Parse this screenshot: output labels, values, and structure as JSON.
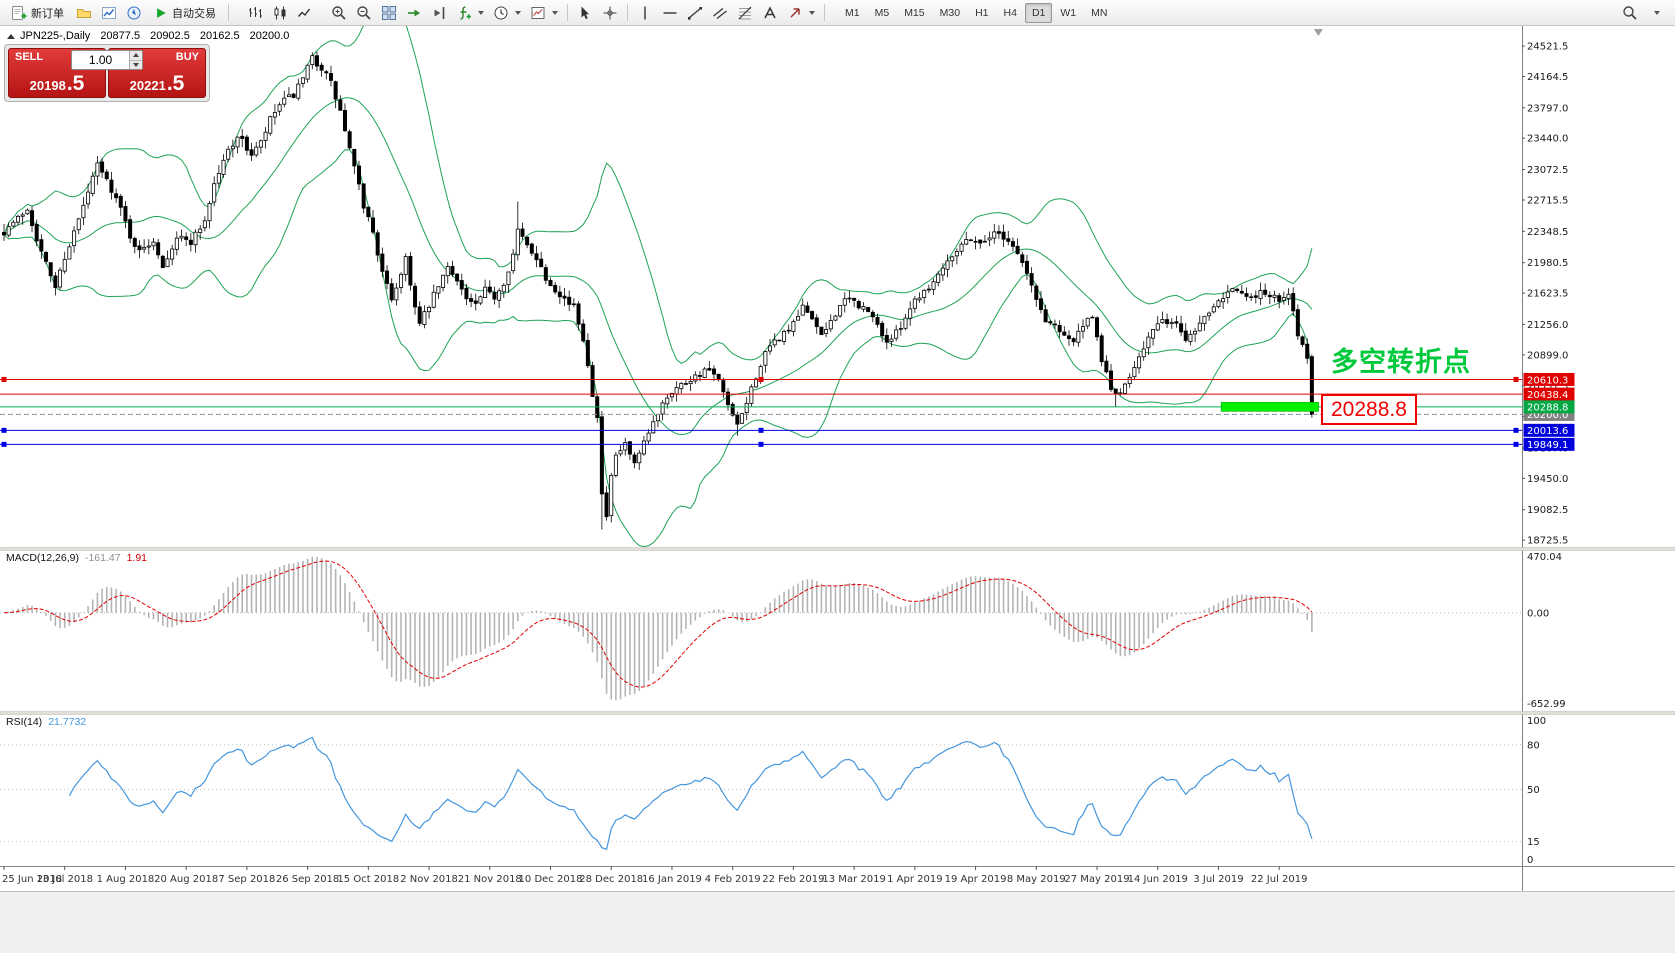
{
  "toolbar": {
    "new_order_label": "新订单",
    "autotrading_label": "自动交易",
    "timeframes": [
      "M1",
      "M5",
      "M15",
      "M30",
      "H1",
      "H4",
      "D1",
      "W1",
      "MN"
    ],
    "active_timeframe": "D1"
  },
  "chart": {
    "symbol_period": "JPN225-,Daily",
    "open": "20877.5",
    "high": "20902.5",
    "low": "20162.5",
    "close": "20200.0"
  },
  "trade_panel": {
    "sell_label": "SELL",
    "buy_label": "BUY",
    "volume": "1.00",
    "sell_price_main": "20198",
    "sell_price_big": ".5",
    "buy_price_main": "20221",
    "buy_price_big": ".5"
  },
  "annotations": {
    "turning_point_text": "多空转折点",
    "price_label": "20288.8"
  },
  "indicators": {
    "macd": {
      "name": "MACD(12,26,9)",
      "value": "-161.47",
      "signal_value": "1.91"
    },
    "rsi": {
      "name": "RSI(14)",
      "value": "21.7732"
    }
  },
  "chart_data": {
    "type": "candlestick",
    "symbol": "JPN225-",
    "timeframe": "Daily",
    "current_bar": {
      "open": 20877.5,
      "high": 20902.5,
      "low": 20162.5,
      "close": 20200.0
    },
    "bid_price": 20198.5,
    "ask_price": 20221.5,
    "ylim": [
      18645,
      24733
    ],
    "y_tick_labels": [
      24521.5,
      24164.5,
      23797.0,
      23440.0,
      23072.5,
      22715.5,
      22348.5,
      21980.5,
      21623.5,
      21256.0,
      20899.0,
      20531.5,
      20174.0,
      19807.0,
      19450.0,
      19082.5,
      18725.5
    ],
    "x_tick_labels": [
      "25 Jun 2018",
      "13 Jul 2018",
      "1 Aug 2018",
      "20 Aug 2018",
      "7 Sep 2018",
      "26 Sep 2018",
      "15 Oct 2018",
      "2 Nov 2018",
      "21 Nov 2018",
      "10 Dec 2018",
      "28 Dec 2018",
      "16 Jan 2019",
      "4 Feb 2019",
      "22 Feb 2019",
      "13 Mar 2019",
      "1 Apr 2019",
      "19 Apr 2019",
      "8 May 2019",
      "27 May 2019",
      "14 Jun 2019",
      "3 Jul 2019",
      "22 Jul 2019"
    ],
    "bars_per_x_tick": 13,
    "bars_visible": 281,
    "price_anchors": [
      [
        0,
        22350
      ],
      [
        3,
        22500
      ],
      [
        5,
        22620
      ],
      [
        8,
        22100
      ],
      [
        11,
        21700
      ],
      [
        13,
        22050
      ],
      [
        16,
        22480
      ],
      [
        18,
        22800
      ],
      [
        20,
        23130
      ],
      [
        23,
        22850
      ],
      [
        25,
        22610
      ],
      [
        27,
        22300
      ],
      [
        29,
        22100
      ],
      [
        32,
        22250
      ],
      [
        34,
        21950
      ],
      [
        37,
        22280
      ],
      [
        40,
        22230
      ],
      [
        43,
        22480
      ],
      [
        45,
        22900
      ],
      [
        48,
        23300
      ],
      [
        50,
        23470
      ],
      [
        53,
        23250
      ],
      [
        55,
        23380
      ],
      [
        57,
        23650
      ],
      [
        59,
        23830
      ],
      [
        62,
        23950
      ],
      [
        64,
        24120
      ],
      [
        66,
        24380
      ],
      [
        68,
        24270
      ],
      [
        70,
        24080
      ],
      [
        72,
        23750
      ],
      [
        75,
        23080
      ],
      [
        77,
        22650
      ],
      [
        79,
        22350
      ],
      [
        81,
        21850
      ],
      [
        83,
        21560
      ],
      [
        85,
        21850
      ],
      [
        86,
        22050
      ],
      [
        88,
        21450
      ],
      [
        89,
        21250
      ],
      [
        91,
        21480
      ],
      [
        93,
        21700
      ],
      [
        95,
        21920
      ],
      [
        97,
        21800
      ],
      [
        99,
        21550
      ],
      [
        101,
        21480
      ],
      [
        103,
        21650
      ],
      [
        105,
        21580
      ],
      [
        107,
        21750
      ],
      [
        109,
        22080
      ],
      [
        110,
        22350
      ],
      [
        112,
        22180
      ],
      [
        114,
        22050
      ],
      [
        116,
        21800
      ],
      [
        118,
        21680
      ],
      [
        120,
        21560
      ],
      [
        122,
        21450
      ],
      [
        124,
        21100
      ],
      [
        126,
        20450
      ],
      [
        127,
        20200
      ],
      [
        128,
        19250
      ],
      [
        129,
        19000
      ],
      [
        130,
        19450
      ],
      [
        131,
        19700
      ],
      [
        133,
        19850
      ],
      [
        135,
        19600
      ],
      [
        137,
        19850
      ],
      [
        139,
        20100
      ],
      [
        141,
        20350
      ],
      [
        143,
        20480
      ],
      [
        145,
        20550
      ],
      [
        147,
        20620
      ],
      [
        149,
        20680
      ],
      [
        151,
        20720
      ],
      [
        153,
        20580
      ],
      [
        155,
        20300
      ],
      [
        157,
        20050
      ],
      [
        159,
        20350
      ],
      [
        161,
        20650
      ],
      [
        163,
        20900
      ],
      [
        165,
        21050
      ],
      [
        167,
        21150
      ],
      [
        169,
        21250
      ],
      [
        171,
        21450
      ],
      [
        173,
        21350
      ],
      [
        175,
        21100
      ],
      [
        177,
        21300
      ],
      [
        179,
        21480
      ],
      [
        181,
        21550
      ],
      [
        183,
        21480
      ],
      [
        185,
        21400
      ],
      [
        187,
        21250
      ],
      [
        189,
        21050
      ],
      [
        191,
        21150
      ],
      [
        193,
        21350
      ],
      [
        195,
        21550
      ],
      [
        197,
        21650
      ],
      [
        199,
        21750
      ],
      [
        201,
        21950
      ],
      [
        203,
        22080
      ],
      [
        205,
        22200
      ],
      [
        207,
        22280
      ],
      [
        209,
        22200
      ],
      [
        211,
        22300
      ],
      [
        213,
        22330
      ],
      [
        215,
        22250
      ],
      [
        217,
        22100
      ],
      [
        219,
        21850
      ],
      [
        221,
        21550
      ],
      [
        223,
        21300
      ],
      [
        225,
        21250
      ],
      [
        227,
        21150
      ],
      [
        229,
        21050
      ],
      [
        231,
        21250
      ],
      [
        233,
        21320
      ],
      [
        235,
        20850
      ],
      [
        237,
        20500
      ],
      [
        239,
        20420
      ],
      [
        241,
        20650
      ],
      [
        243,
        20900
      ],
      [
        245,
        21100
      ],
      [
        247,
        21250
      ],
      [
        249,
        21300
      ],
      [
        251,
        21250
      ],
      [
        253,
        21100
      ],
      [
        255,
        21200
      ],
      [
        257,
        21350
      ],
      [
        259,
        21500
      ],
      [
        261,
        21600
      ],
      [
        263,
        21700
      ],
      [
        265,
        21600
      ],
      [
        267,
        21550
      ],
      [
        269,
        21650
      ],
      [
        271,
        21600
      ],
      [
        273,
        21530
      ],
      [
        275,
        21600
      ],
      [
        277,
        21150
      ],
      [
        278,
        21000
      ],
      [
        279,
        20880
      ],
      [
        280,
        20200
      ]
    ],
    "wick_overrides": {
      "high": [
        [
          20,
          23200
        ],
        [
          66,
          24448
        ],
        [
          110,
          22698
        ]
      ],
      "low": [
        [
          128,
          18850
        ],
        [
          157,
          19950
        ],
        [
          238,
          20292
        ]
      ]
    },
    "noise": {
      "seed": 7,
      "body": 0.004,
      "gap": 0.0015,
      "wick": 0.0045
    },
    "overlays": {
      "bollinger": {
        "period": 20,
        "deviation": 2,
        "color": "#1fa355"
      }
    },
    "hlines": [
      {
        "price": 20610.3,
        "color": "#e00000",
        "style": "solid",
        "handles": true,
        "tag_color": "#e00000"
      },
      {
        "price": 20438.4,
        "color": "#e00000",
        "style": "solid",
        "handles": false,
        "tag_color": "#e00000"
      },
      {
        "price": 20200.0,
        "color": "#909090",
        "style": "dash",
        "handles": false,
        "tag_color": "#808080"
      },
      {
        "price": 20288.8,
        "color": "#00b050",
        "style": "solid",
        "handles": false,
        "tag_color": "#00a844"
      },
      {
        "price": 20013.6,
        "color": "#0000e6",
        "style": "solid",
        "handles": true,
        "tag_color": "#0000dd"
      },
      {
        "price": 19849.1,
        "color": "#0000e6",
        "style": "solid",
        "handles": true,
        "tag_color": "#0000dd"
      }
    ],
    "highlight": {
      "from_bar": 261,
      "to_bar": 281,
      "price": 20288.8,
      "color": "#00f000",
      "border": "#00b000"
    },
    "indicators": {
      "macd": {
        "fast": 12,
        "slow": 26,
        "signal": 9,
        "value": -161.47,
        "signal_value": 1.91,
        "axis_labels": [
          "470.04",
          "0.00",
          "-652.99"
        ],
        "histogram_color": "#b4b4b4",
        "signal_color": "#e00000"
      },
      "rsi": {
        "period": 14,
        "value": 21.7732,
        "levels": [
          80,
          50,
          15
        ],
        "axis_labels": [
          "100",
          "80",
          "50",
          "15",
          "0"
        ],
        "color": "#4596dd"
      }
    }
  }
}
